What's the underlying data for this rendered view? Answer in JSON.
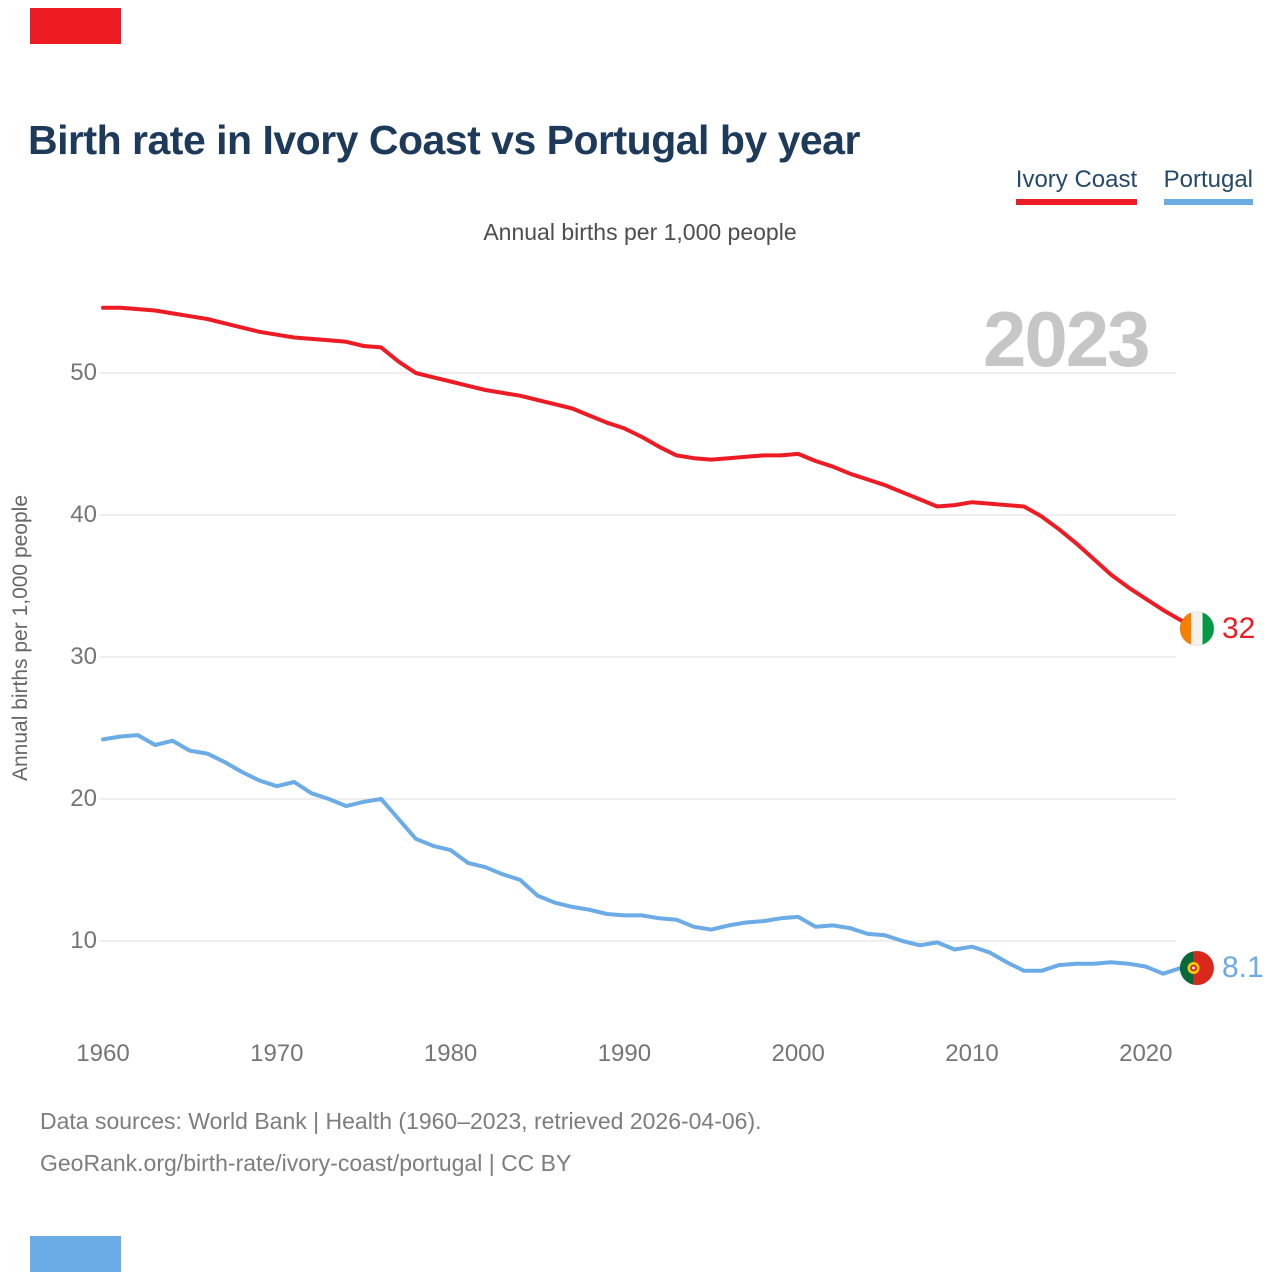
{
  "page": {
    "title": "Birth rate in Ivory Coast vs Portugal by year",
    "subtitle": "Annual births per 1,000 people",
    "watermark_year": "2023",
    "footer_line1": "Data sources: World Bank | Health (1960–2023, retrieved 2026-04-06).",
    "footer_line2": "GeoRank.org/birth-rate/ivory-coast/portugal | CC BY"
  },
  "colors": {
    "ivory_coast": "#ed1c24",
    "portugal": "#6babe6",
    "title_navy": "#1d3a5a",
    "legend_text": "#24496b",
    "gridline": "#e9e9e9",
    "tick_text": "#757575",
    "watermark_gray": "#c6c6c6",
    "footer_gray": "#7d7d7d"
  },
  "legend": {
    "items": [
      {
        "label": "Ivory Coast",
        "series": "ivory_coast"
      },
      {
        "label": "Portugal",
        "series": "portugal"
      }
    ]
  },
  "end_labels": {
    "ivory_coast": "32",
    "portugal": "8.1"
  },
  "chart_data": {
    "type": "line",
    "title": "Annual births per 1,000 people",
    "xlabel": "",
    "ylabel": "Annual births per 1,000 people",
    "x_start": 1960,
    "x_end": 2023,
    "xticks": [
      1960,
      1970,
      1980,
      1990,
      2000,
      2010,
      2020
    ],
    "yticks": [
      10,
      20,
      30,
      40,
      50
    ],
    "ylim": [
      5,
      56
    ],
    "grid": "horizontal",
    "legend_position": "top-right",
    "annotations": {
      "current_year": "2023",
      "ivory_coast_last": 32,
      "portugal_last": 8.1
    },
    "series": [
      {
        "name": "Ivory Coast",
        "key": "ivory_coast",
        "values": [
          54.6,
          54.6,
          54.5,
          54.4,
          54.2,
          54.0,
          53.8,
          53.5,
          53.2,
          52.9,
          52.7,
          52.5,
          52.4,
          52.3,
          52.2,
          51.9,
          51.8,
          50.8,
          50.0,
          49.7,
          49.4,
          49.1,
          48.8,
          48.6,
          48.4,
          48.1,
          47.8,
          47.5,
          47.0,
          46.5,
          46.1,
          45.5,
          44.8,
          44.2,
          44.0,
          43.9,
          44.0,
          44.1,
          44.2,
          44.2,
          44.3,
          43.8,
          43.4,
          42.9,
          42.5,
          42.1,
          41.6,
          41.1,
          40.6,
          40.7,
          40.9,
          40.8,
          40.7,
          40.6,
          39.9,
          39.0,
          38.0,
          36.9,
          35.8,
          34.9,
          34.1,
          33.3,
          32.6,
          32.0
        ]
      },
      {
        "name": "Portugal",
        "key": "portugal",
        "values": [
          24.2,
          24.4,
          24.5,
          23.8,
          24.1,
          23.4,
          23.2,
          22.6,
          21.9,
          21.3,
          20.9,
          21.2,
          20.4,
          20.0,
          19.5,
          19.8,
          20.0,
          18.6,
          17.2,
          16.7,
          16.4,
          15.5,
          15.2,
          14.7,
          14.3,
          13.2,
          12.7,
          12.4,
          12.2,
          11.9,
          11.8,
          11.8,
          11.6,
          11.5,
          11.0,
          10.8,
          11.1,
          11.3,
          11.4,
          11.6,
          11.7,
          11.0,
          11.1,
          10.9,
          10.5,
          10.4,
          10.0,
          9.7,
          9.9,
          9.4,
          9.6,
          9.2,
          8.5,
          7.9,
          7.9,
          8.3,
          8.4,
          8.4,
          8.5,
          8.4,
          8.2,
          7.7,
          8.1,
          8.1
        ]
      }
    ]
  }
}
